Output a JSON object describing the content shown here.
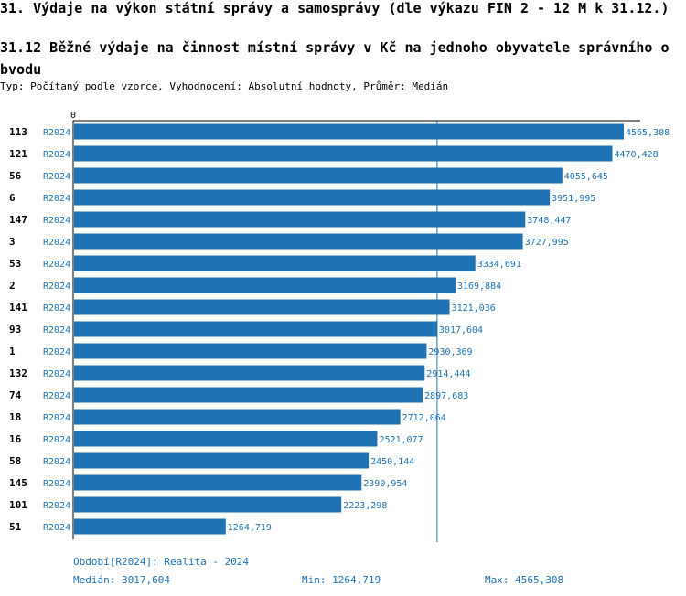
{
  "header": {
    "title": "31. Výdaje na výkon státní správy a samosprávy (dle výkazu FIN 2 - 12 M k 31.12.)",
    "subtitle": "31.12 Běžné výdaje na činnost místní správy v Kč na jednoho obyvatele správního o bvodu",
    "type_line": "Typ: Počítaný podle vzorce, Vyhodnocení: Absolutní hodnoty, Průměr: Medián"
  },
  "chart_data": {
    "type": "bar",
    "orientation": "horizontal",
    "axis_zero_label": "0",
    "xlim": [
      0,
      4565.308
    ],
    "median": 3017.604,
    "bar_color": "#1f72b4",
    "rows": [
      {
        "id": "113",
        "period": "R2024",
        "value": 4565.308,
        "label": "4565,308"
      },
      {
        "id": "121",
        "period": "R2024",
        "value": 4470.428,
        "label": "4470,428"
      },
      {
        "id": "56",
        "period": "R2024",
        "value": 4055.645,
        "label": "4055,645"
      },
      {
        "id": "6",
        "period": "R2024",
        "value": 3951.995,
        "label": "3951,995"
      },
      {
        "id": "147",
        "period": "R2024",
        "value": 3748.447,
        "label": "3748,447"
      },
      {
        "id": "3",
        "period": "R2024",
        "value": 3727.995,
        "label": "3727,995"
      },
      {
        "id": "53",
        "period": "R2024",
        "value": 3334.691,
        "label": "3334,691"
      },
      {
        "id": "2",
        "period": "R2024",
        "value": 3169.884,
        "label": "3169,884"
      },
      {
        "id": "141",
        "period": "R2024",
        "value": 3121.036,
        "label": "3121,036"
      },
      {
        "id": "93",
        "period": "R2024",
        "value": 3017.604,
        "label": "3017,604"
      },
      {
        "id": "1",
        "period": "R2024",
        "value": 2930.369,
        "label": "2930,369"
      },
      {
        "id": "132",
        "period": "R2024",
        "value": 2914.444,
        "label": "2914,444"
      },
      {
        "id": "74",
        "period": "R2024",
        "value": 2897.683,
        "label": "2897,683"
      },
      {
        "id": "18",
        "period": "R2024",
        "value": 2712.064,
        "label": "2712,064"
      },
      {
        "id": "16",
        "period": "R2024",
        "value": 2521.077,
        "label": "2521,077"
      },
      {
        "id": "58",
        "period": "R2024",
        "value": 2450.144,
        "label": "2450,144"
      },
      {
        "id": "145",
        "period": "R2024",
        "value": 2390.954,
        "label": "2390,954"
      },
      {
        "id": "101",
        "period": "R2024",
        "value": 2223.298,
        "label": "2223,298"
      },
      {
        "id": "51",
        "period": "R2024",
        "value": 1264.719,
        "label": "1264,719"
      }
    ]
  },
  "footer": {
    "period_note": "Období[R2024]: Realita - 2024",
    "median": "Medián: 3017,604",
    "min": "Min: 1264,719",
    "max": "Max: 4565,308"
  }
}
